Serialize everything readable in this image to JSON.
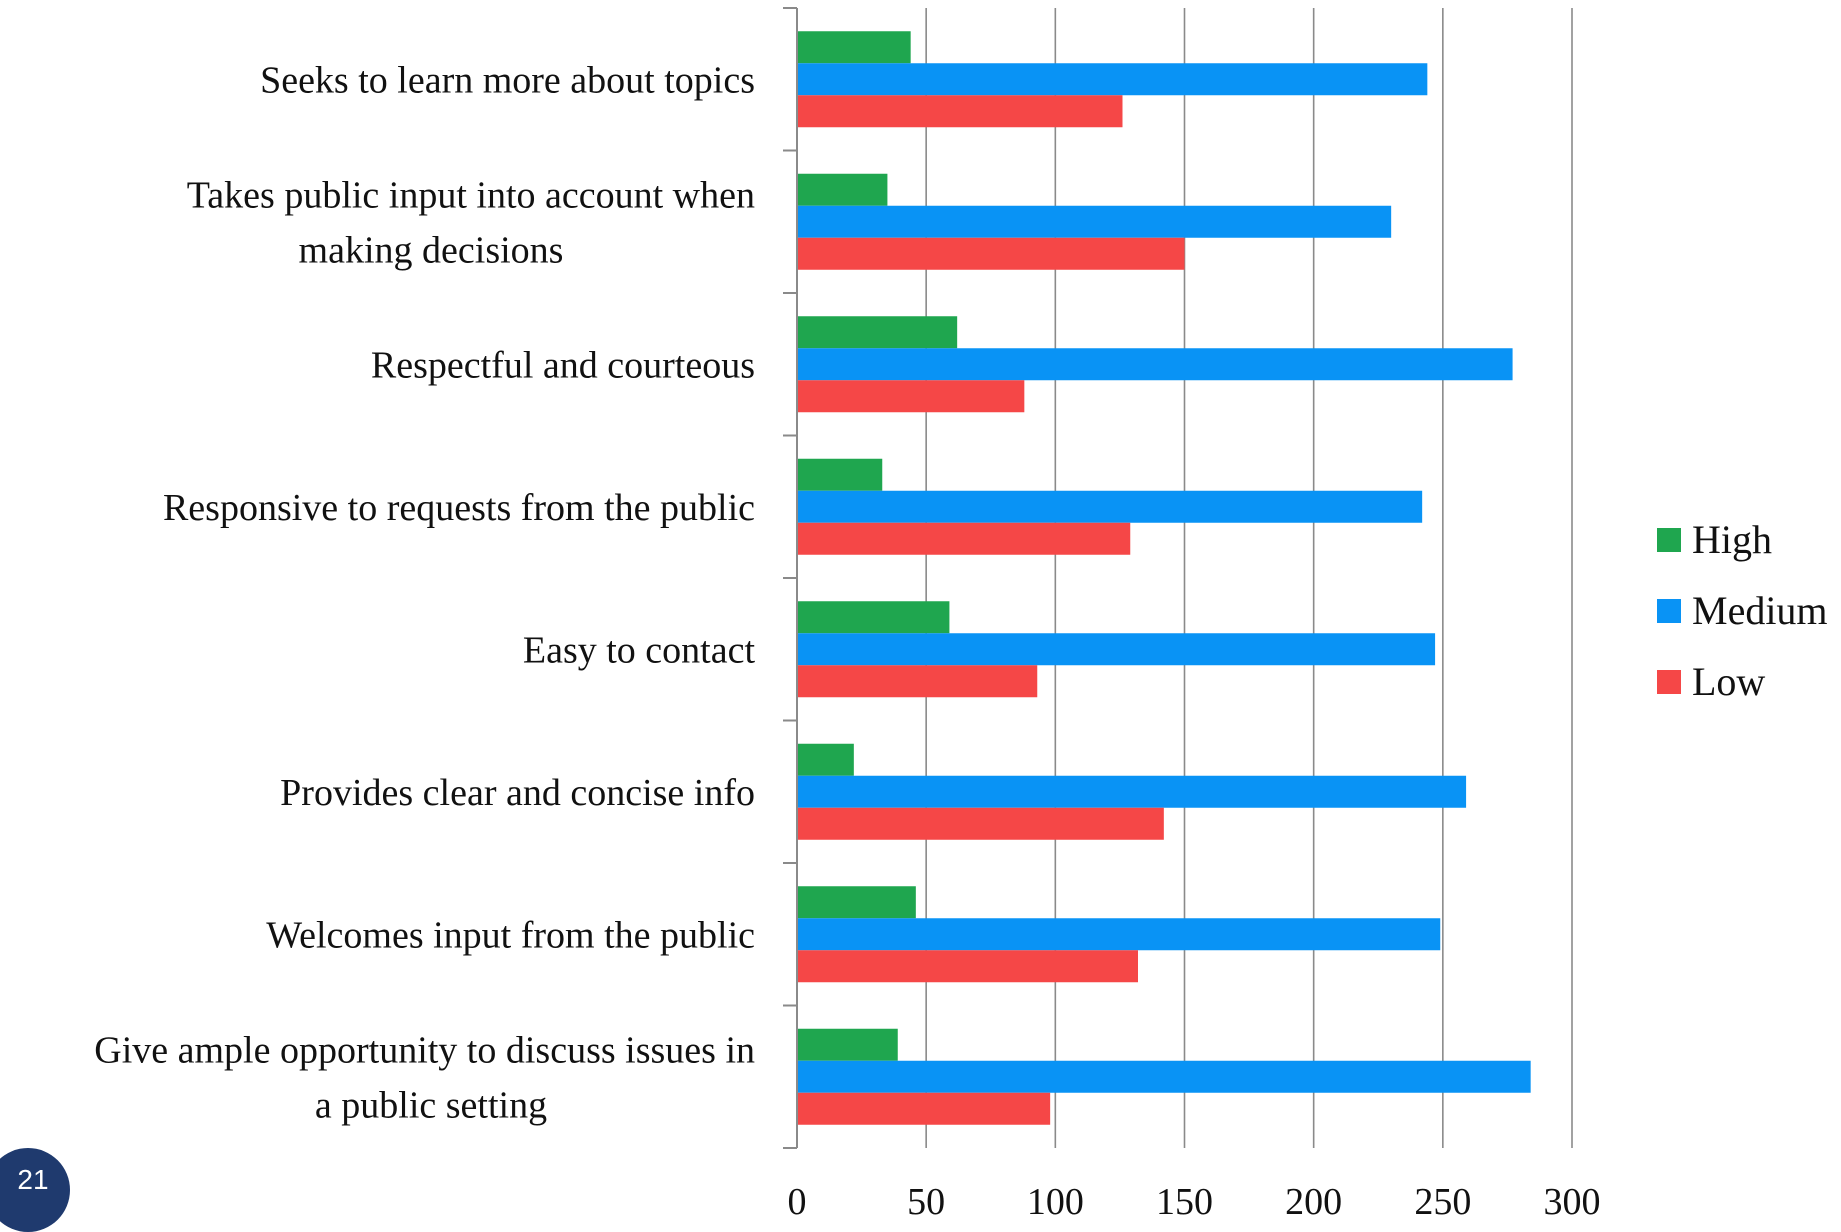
{
  "chart_data": {
    "type": "bar",
    "orientation": "horizontal",
    "categories": [
      "Seeks to learn more about topics",
      "Takes public input into account when making decisions",
      "Respectful and courteous",
      "Responsive to requests from the public",
      "Easy to contact",
      "Provides clear and concise info",
      "Welcomes input from the public",
      "Give ample opportunity to discuss issues in a public setting"
    ],
    "category_lines": [
      [
        "Seeks to learn more about topics"
      ],
      [
        "Takes public input into account when",
        "making decisions"
      ],
      [
        "Respectful and courteous"
      ],
      [
        "Responsive to requests from the public"
      ],
      [
        "Easy to contact"
      ],
      [
        "Provides clear and concise info"
      ],
      [
        "Welcomes input from the public"
      ],
      [
        "Give ample opportunity to discuss issues in",
        "a public setting"
      ]
    ],
    "series": [
      {
        "name": "High",
        "color": "#1fa64f",
        "values": [
          44,
          35,
          62,
          33,
          59,
          22,
          46,
          39
        ]
      },
      {
        "name": "Medium",
        "color": "#0993f5",
        "values": [
          244,
          230,
          277,
          242,
          247,
          259,
          249,
          284
        ]
      },
      {
        "name": "Low",
        "color": "#f54747",
        "values": [
          126,
          150,
          88,
          129,
          93,
          142,
          132,
          98
        ]
      }
    ],
    "xlim": [
      0,
      300
    ],
    "xticks": [
      0,
      50,
      100,
      150,
      200,
      250,
      300
    ],
    "grid": "vertical",
    "legend_position": "right"
  },
  "slide_number": "21"
}
